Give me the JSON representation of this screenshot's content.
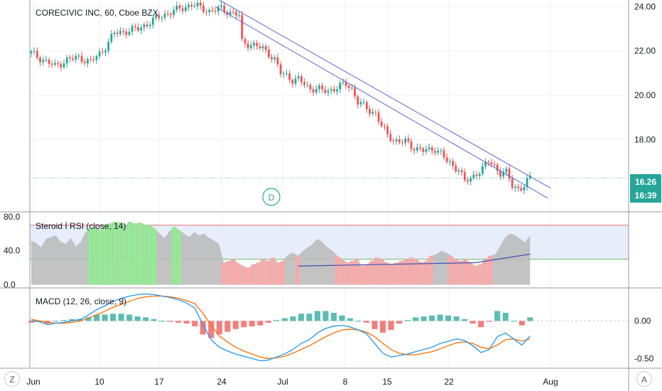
{
  "chart_data": [
    {
      "type": "candlestick",
      "title": "CORECIVIC INC, 60, Cboe BZX",
      "x_ticks": [
        "Jun",
        "10",
        "17",
        "24",
        "Jul",
        "8",
        "15",
        "22",
        "Aug"
      ],
      "y_ticks": [
        "24.00",
        "22.00",
        "20.00",
        "18.00"
      ],
      "ylim": [
        14.8,
        24.3
      ],
      "last_price": "16.26",
      "countdown": "16:39",
      "marker": "D",
      "close_path": [
        [
          0,
          21.9
        ],
        [
          4,
          21.6
        ],
        [
          8,
          21.3
        ],
        [
          12,
          21.6
        ],
        [
          16,
          21.7
        ],
        [
          20,
          21.5
        ],
        [
          24,
          22.0
        ],
        [
          28,
          22.8
        ],
        [
          32,
          22.9
        ],
        [
          36,
          23.0
        ],
        [
          40,
          23.3
        ],
        [
          44,
          23.6
        ],
        [
          48,
          23.8
        ],
        [
          52,
          24.0
        ],
        [
          54,
          24.1
        ],
        [
          56,
          24.0
        ],
        [
          60,
          23.8
        ],
        [
          64,
          23.9
        ],
        [
          68,
          23.7
        ],
        [
          70,
          23.6
        ],
        [
          70.5,
          22.4
        ],
        [
          74,
          22.3
        ],
        [
          78,
          22.1
        ],
        [
          80,
          21.9
        ],
        [
          82,
          21.6
        ],
        [
          84,
          21.0
        ],
        [
          86,
          20.9
        ],
        [
          88,
          20.7
        ],
        [
          90,
          20.7
        ],
        [
          92,
          20.5
        ],
        [
          94,
          20.3
        ],
        [
          96,
          20.3
        ],
        [
          98,
          20.2
        ],
        [
          100,
          20.2
        ],
        [
          102,
          20.3
        ],
        [
          104,
          20.4
        ],
        [
          106,
          20.5
        ],
        [
          108,
          20.3
        ],
        [
          110,
          19.7
        ],
        [
          112,
          19.5
        ],
        [
          114,
          19.3
        ],
        [
          116,
          19.2
        ],
        [
          118,
          18.6
        ],
        [
          120,
          18.2
        ],
        [
          122,
          18.0
        ],
        [
          124,
          17.9
        ],
        [
          126,
          17.9
        ],
        [
          128,
          17.7
        ],
        [
          130,
          17.6
        ],
        [
          132,
          17.5
        ],
        [
          134,
          17.5
        ],
        [
          136,
          17.6
        ],
        [
          138,
          17.4
        ],
        [
          140,
          17.0
        ],
        [
          142,
          16.8
        ],
        [
          144,
          16.7
        ],
        [
          146,
          16.1
        ],
        [
          148,
          16.2
        ],
        [
          150,
          16.5
        ],
        [
          152,
          16.7
        ],
        [
          154,
          17.0
        ],
        [
          156,
          16.8
        ],
        [
          158,
          16.5
        ],
        [
          160,
          16.5
        ],
        [
          162,
          15.9
        ],
        [
          164,
          15.8
        ],
        [
          166,
          15.9
        ],
        [
          168,
          16.26
        ]
      ],
      "trend_lines": [
        {
          "from": [
            62,
            24.4
          ],
          "to": [
            175,
            15.8
          ]
        },
        {
          "from": [
            62,
            24.0
          ],
          "to": [
            174,
            15.35
          ]
        }
      ]
    },
    {
      "type": "area",
      "title": "Steroid İ RSI (close, 14)",
      "y_ticks": [
        "80.0",
        "40.0",
        "0.0"
      ],
      "ylim": [
        -2,
        84
      ],
      "levels": [
        70,
        30
      ],
      "values": [
        52,
        49,
        44,
        54,
        56,
        58,
        50,
        48,
        55,
        45,
        50,
        62,
        66,
        68,
        64,
        70,
        72,
        74,
        73,
        70,
        74,
        72,
        73,
        71,
        70,
        66,
        60,
        55,
        63,
        68,
        64,
        60,
        56,
        62,
        58,
        60,
        55,
        52,
        48,
        26,
        28,
        30,
        25,
        22,
        20,
        24,
        26,
        30,
        28,
        32,
        26,
        28,
        35,
        38,
        34,
        40,
        44,
        48,
        54,
        50,
        44,
        40,
        34,
        30,
        26,
        28,
        30,
        22,
        24,
        28,
        32,
        30,
        26,
        24,
        26,
        28,
        30,
        32,
        30,
        26,
        28,
        34,
        36,
        40,
        38,
        34,
        30,
        28,
        30,
        26,
        22,
        24,
        30,
        34,
        36,
        46,
        56,
        60,
        58,
        54,
        50,
        58
      ]
    },
    {
      "type": "line",
      "title": "MACD (12, 26, close, 9)",
      "y_ticks": [
        "0.00",
        "-0.50"
      ],
      "ylim": [
        -0.62,
        0.42
      ],
      "macd": [
        0.0,
        -0.01,
        -0.05,
        -0.03,
        -0.02,
        0.0,
        0.02,
        0.08,
        0.15,
        0.2,
        0.26,
        0.3,
        0.33,
        0.35,
        0.36,
        0.35,
        0.33,
        0.31,
        0.28,
        0.24,
        0.17,
        -0.05,
        -0.25,
        -0.35,
        -0.4,
        -0.44,
        -0.47,
        -0.5,
        -0.53,
        -0.52,
        -0.48,
        -0.44,
        -0.38,
        -0.3,
        -0.25,
        -0.16,
        -0.1,
        -0.07,
        -0.06,
        -0.08,
        -0.12,
        -0.17,
        -0.3,
        -0.43,
        -0.48,
        -0.46,
        -0.44,
        -0.41,
        -0.38,
        -0.35,
        -0.3,
        -0.27,
        -0.24,
        -0.26,
        -0.33,
        -0.42,
        -0.38,
        -0.21,
        -0.16,
        -0.24,
        -0.32,
        -0.2
      ],
      "signal": [
        0.02,
        0.0,
        -0.02,
        -0.03,
        -0.03,
        -0.02,
        0.0,
        0.04,
        0.08,
        0.13,
        0.18,
        0.22,
        0.26,
        0.3,
        0.32,
        0.33,
        0.33,
        0.32,
        0.3,
        0.27,
        0.23,
        0.1,
        -0.06,
        -0.2,
        -0.28,
        -0.35,
        -0.4,
        -0.44,
        -0.48,
        -0.5,
        -0.49,
        -0.47,
        -0.43,
        -0.38,
        -0.33,
        -0.27,
        -0.21,
        -0.16,
        -0.12,
        -0.11,
        -0.12,
        -0.15,
        -0.21,
        -0.3,
        -0.38,
        -0.43,
        -0.45,
        -0.45,
        -0.43,
        -0.41,
        -0.37,
        -0.33,
        -0.29,
        -0.28,
        -0.3,
        -0.35,
        -0.37,
        -0.32,
        -0.25,
        -0.24,
        -0.27,
        -0.24
      ],
      "colors": {
        "macd": "#2196f3",
        "signal": "#ff6d00",
        "hist_up": "#26a69a",
        "hist_down": "#ef5350"
      }
    }
  ],
  "toolbar": {
    "left_button": "Z",
    "right_button": "A"
  }
}
